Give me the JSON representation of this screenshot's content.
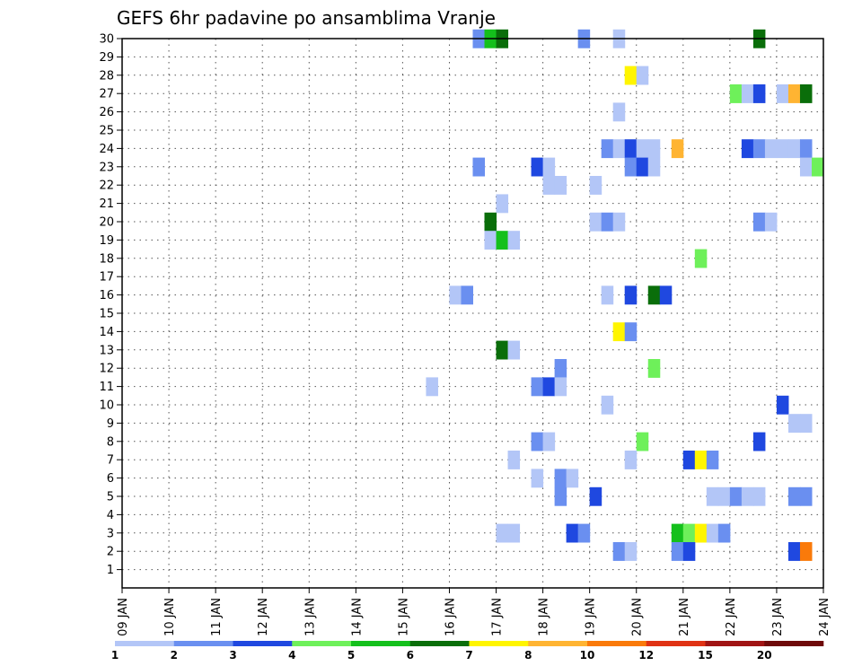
{
  "chart_data": {
    "type": "heatmap",
    "title": "GEFS 6hr padavine po ansamblima Vranje",
    "xlabel": "",
    "ylabel": "",
    "x_ticks": [
      "09 JAN",
      "10 JAN",
      "11 JAN",
      "12 JAN",
      "13 JAN",
      "14 JAN",
      "15 JAN",
      "16 JAN",
      "17 JAN",
      "18 JAN",
      "19 JAN",
      "20 JAN",
      "21 JAN",
      "22 JAN",
      "23 JAN",
      "24 JAN"
    ],
    "xlim": [
      9,
      24
    ],
    "ylim": [
      0,
      30
    ],
    "y_ticks": [
      1,
      2,
      3,
      4,
      5,
      6,
      7,
      8,
      9,
      10,
      11,
      12,
      13,
      14,
      15,
      16,
      17,
      18,
      19,
      20,
      21,
      22,
      23,
      24,
      25,
      26,
      27,
      28,
      29,
      30
    ],
    "grid": true,
    "colorbar": {
      "labels": [
        "1",
        "2",
        "3",
        "4",
        "5",
        "6",
        "7",
        "8",
        "10",
        "12",
        "15",
        "20"
      ],
      "colors": [
        "#b3c6f7",
        "#6a8ff0",
        "#1f48e0",
        "#6ef05a",
        "#14c01c",
        "#0a6e0a",
        "#fff500",
        "#ffb432",
        "#fa7a0a",
        "#e03214",
        "#a01414",
        "#6e0a0a"
      ]
    },
    "cells": [
      {
        "member": 30,
        "day": 16.5,
        "cat": 2
      },
      {
        "member": 30,
        "day": 16.75,
        "cat": 5
      },
      {
        "member": 30,
        "day": 17.0,
        "cat": 6
      },
      {
        "member": 30,
        "day": 18.75,
        "cat": 2
      },
      {
        "member": 30,
        "day": 19.5,
        "cat": 1
      },
      {
        "member": 30,
        "day": 22.5,
        "cat": 6
      },
      {
        "member": 28,
        "day": 19.75,
        "cat": 7
      },
      {
        "member": 28,
        "day": 20.0,
        "cat": 1
      },
      {
        "member": 27,
        "day": 22.0,
        "cat": 4
      },
      {
        "member": 27,
        "day": 22.25,
        "cat": 1
      },
      {
        "member": 27,
        "day": 22.5,
        "cat": 3
      },
      {
        "member": 27,
        "day": 23.0,
        "cat": 1
      },
      {
        "member": 27,
        "day": 23.25,
        "cat": 8
      },
      {
        "member": 27,
        "day": 23.5,
        "cat": 6
      },
      {
        "member": 26,
        "day": 19.5,
        "cat": 1
      },
      {
        "member": 24,
        "day": 19.25,
        "cat": 2
      },
      {
        "member": 24,
        "day": 19.5,
        "cat": 1
      },
      {
        "member": 24,
        "day": 19.75,
        "cat": 3
      },
      {
        "member": 24,
        "day": 20.0,
        "cat": 1
      },
      {
        "member": 24,
        "day": 20.25,
        "cat": 1
      },
      {
        "member": 24,
        "day": 20.75,
        "cat": 8
      },
      {
        "member": 24,
        "day": 22.25,
        "cat": 3
      },
      {
        "member": 24,
        "day": 22.5,
        "cat": 2
      },
      {
        "member": 24,
        "day": 22.75,
        "cat": 1
      },
      {
        "member": 24,
        "day": 23.0,
        "cat": 1
      },
      {
        "member": 24,
        "day": 23.25,
        "cat": 1
      },
      {
        "member": 24,
        "day": 23.5,
        "cat": 2
      },
      {
        "member": 23,
        "day": 16.5,
        "cat": 2
      },
      {
        "member": 23,
        "day": 17.75,
        "cat": 3
      },
      {
        "member": 23,
        "day": 18.0,
        "cat": 1
      },
      {
        "member": 23,
        "day": 19.75,
        "cat": 2
      },
      {
        "member": 23,
        "day": 20.0,
        "cat": 3
      },
      {
        "member": 23,
        "day": 20.25,
        "cat": 1
      },
      {
        "member": 23,
        "day": 23.5,
        "cat": 1
      },
      {
        "member": 23,
        "day": 23.75,
        "cat": 4
      },
      {
        "member": 22,
        "day": 18.0,
        "cat": 1
      },
      {
        "member": 22,
        "day": 18.25,
        "cat": 1
      },
      {
        "member": 22,
        "day": 19.0,
        "cat": 1
      },
      {
        "member": 21,
        "day": 17.0,
        "cat": 1
      },
      {
        "member": 20,
        "day": 16.75,
        "cat": 6
      },
      {
        "member": 20,
        "day": 19.0,
        "cat": 1
      },
      {
        "member": 20,
        "day": 19.25,
        "cat": 2
      },
      {
        "member": 20,
        "day": 19.5,
        "cat": 1
      },
      {
        "member": 20,
        "day": 22.5,
        "cat": 2
      },
      {
        "member": 20,
        "day": 22.75,
        "cat": 1
      },
      {
        "member": 19,
        "day": 16.75,
        "cat": 1
      },
      {
        "member": 19,
        "day": 17.0,
        "cat": 5
      },
      {
        "member": 19,
        "day": 17.25,
        "cat": 1
      },
      {
        "member": 18,
        "day": 21.25,
        "cat": 4
      },
      {
        "member": 16,
        "day": 16.0,
        "cat": 1
      },
      {
        "member": 16,
        "day": 16.25,
        "cat": 2
      },
      {
        "member": 16,
        "day": 19.25,
        "cat": 1
      },
      {
        "member": 16,
        "day": 19.75,
        "cat": 3
      },
      {
        "member": 16,
        "day": 20.25,
        "cat": 6
      },
      {
        "member": 16,
        "day": 20.5,
        "cat": 3
      },
      {
        "member": 14,
        "day": 19.5,
        "cat": 7
      },
      {
        "member": 14,
        "day": 19.75,
        "cat": 2
      },
      {
        "member": 13,
        "day": 17.0,
        "cat": 6
      },
      {
        "member": 13,
        "day": 17.25,
        "cat": 1
      },
      {
        "member": 12,
        "day": 18.25,
        "cat": 2
      },
      {
        "member": 12,
        "day": 20.25,
        "cat": 4
      },
      {
        "member": 11,
        "day": 15.5,
        "cat": 1
      },
      {
        "member": 11,
        "day": 17.75,
        "cat": 2
      },
      {
        "member": 11,
        "day": 18.0,
        "cat": 3
      },
      {
        "member": 11,
        "day": 18.25,
        "cat": 1
      },
      {
        "member": 10,
        "day": 19.25,
        "cat": 1
      },
      {
        "member": 10,
        "day": 23.0,
        "cat": 3
      },
      {
        "member": 9,
        "day": 23.25,
        "cat": 1
      },
      {
        "member": 9,
        "day": 23.5,
        "cat": 1
      },
      {
        "member": 8,
        "day": 17.75,
        "cat": 2
      },
      {
        "member": 8,
        "day": 18.0,
        "cat": 1
      },
      {
        "member": 8,
        "day": 20.0,
        "cat": 4
      },
      {
        "member": 8,
        "day": 22.5,
        "cat": 3
      },
      {
        "member": 7,
        "day": 17.25,
        "cat": 1
      },
      {
        "member": 7,
        "day": 19.75,
        "cat": 1
      },
      {
        "member": 7,
        "day": 21.0,
        "cat": 3
      },
      {
        "member": 7,
        "day": 21.25,
        "cat": 7
      },
      {
        "member": 7,
        "day": 21.5,
        "cat": 2
      },
      {
        "member": 6,
        "day": 17.75,
        "cat": 1
      },
      {
        "member": 6,
        "day": 18.25,
        "cat": 2
      },
      {
        "member": 6,
        "day": 18.5,
        "cat": 1
      },
      {
        "member": 5,
        "day": 18.25,
        "cat": 2
      },
      {
        "member": 5,
        "day": 19.0,
        "cat": 3
      },
      {
        "member": 5,
        "day": 21.5,
        "cat": 1
      },
      {
        "member": 5,
        "day": 21.75,
        "cat": 1
      },
      {
        "member": 5,
        "day": 22.0,
        "cat": 2
      },
      {
        "member": 5,
        "day": 22.25,
        "cat": 1
      },
      {
        "member": 5,
        "day": 22.5,
        "cat": 1
      },
      {
        "member": 5,
        "day": 23.25,
        "cat": 2
      },
      {
        "member": 5,
        "day": 23.5,
        "cat": 2
      },
      {
        "member": 3,
        "day": 17.0,
        "cat": 1
      },
      {
        "member": 3,
        "day": 17.25,
        "cat": 1
      },
      {
        "member": 3,
        "day": 18.5,
        "cat": 3
      },
      {
        "member": 3,
        "day": 18.75,
        "cat": 2
      },
      {
        "member": 3,
        "day": 20.75,
        "cat": 5
      },
      {
        "member": 3,
        "day": 21.0,
        "cat": 4
      },
      {
        "member": 3,
        "day": 21.25,
        "cat": 7
      },
      {
        "member": 3,
        "day": 21.5,
        "cat": 1
      },
      {
        "member": 3,
        "day": 21.75,
        "cat": 2
      },
      {
        "member": 2,
        "day": 19.5,
        "cat": 2
      },
      {
        "member": 2,
        "day": 19.75,
        "cat": 1
      },
      {
        "member": 2,
        "day": 20.75,
        "cat": 2
      },
      {
        "member": 2,
        "day": 21.0,
        "cat": 3
      },
      {
        "member": 2,
        "day": 23.25,
        "cat": 3
      },
      {
        "member": 2,
        "day": 23.5,
        "cat": 9
      }
    ]
  }
}
